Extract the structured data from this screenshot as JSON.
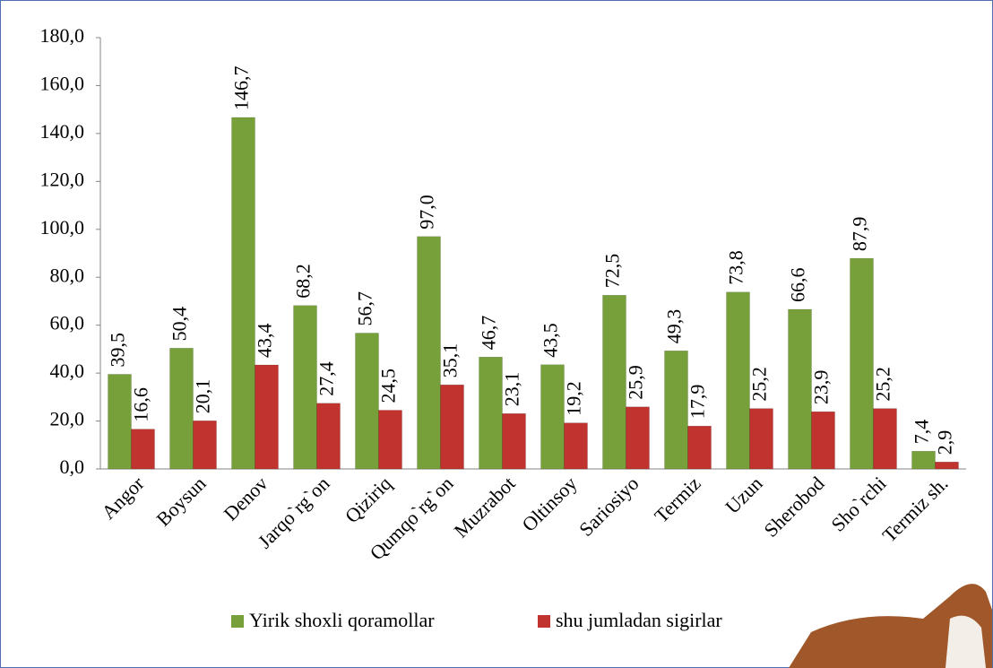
{
  "chart_data": {
    "type": "bar",
    "categories": [
      "Angor",
      "Boysun",
      "Denov",
      "Jarqo`rg`on",
      "Qiziriq",
      "Qumqo`rg`on",
      "Muzrabot",
      "Oltinsoy",
      "Sariosiyo",
      "Termiz",
      "Uzun",
      "Sherobod",
      "Sho`rchi",
      "Termiz sh."
    ],
    "series": [
      {
        "name": "Yirik shoxli qoramollar",
        "color": "#77a03a",
        "values": [
          39.5,
          50.4,
          146.7,
          68.2,
          56.7,
          97.0,
          46.7,
          43.5,
          72.5,
          49.3,
          73.8,
          66.6,
          87.9,
          7.4
        ],
        "value_labels": [
          "39,5",
          "50,4",
          "146,7",
          "68,2",
          "56,7",
          "97,0",
          "46,7",
          "43,5",
          "72,5",
          "49,3",
          "73,8",
          "66,6",
          "87,9",
          "7,4"
        ]
      },
      {
        "name": "shu jumladan sigirlar",
        "color": "#c0332e",
        "values": [
          16.6,
          20.1,
          43.4,
          27.4,
          24.5,
          35.1,
          23.1,
          19.2,
          25.9,
          17.9,
          25.2,
          23.9,
          25.2,
          2.9
        ],
        "value_labels": [
          "16,6",
          "20,1",
          "43,4",
          "27,4",
          "24,5",
          "35,1",
          "23,1",
          "19,2",
          "25,9",
          "17,9",
          "25,2",
          "23,9",
          "25,2",
          "2,9"
        ]
      }
    ],
    "ylim": [
      0,
      180
    ],
    "yticks": [
      {
        "value": 0,
        "label": "0,0"
      },
      {
        "value": 20,
        "label": "20,0"
      },
      {
        "value": 40,
        "label": "40,0"
      },
      {
        "value": 60,
        "label": "60,0"
      },
      {
        "value": 80,
        "label": "80,0"
      },
      {
        "value": 100,
        "label": "100,0"
      },
      {
        "value": 120,
        "label": "120,0"
      },
      {
        "value": 140,
        "label": "140,0"
      },
      {
        "value": 160,
        "label": "160,0"
      },
      {
        "value": 180,
        "label": "180,0"
      }
    ],
    "legend": "bottom"
  }
}
